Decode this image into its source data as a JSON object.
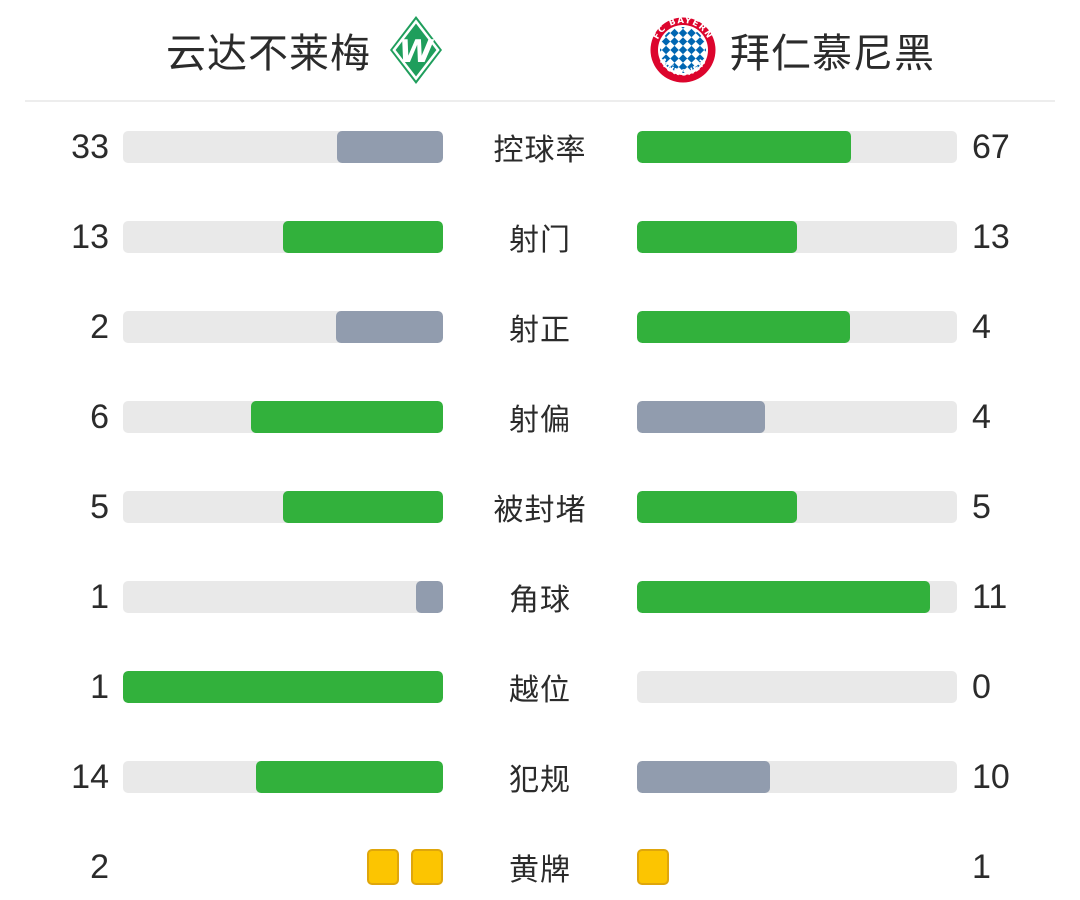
{
  "header": {
    "home_team": {
      "name": "云达不莱梅",
      "logo_letter": "W"
    },
    "away_team": {
      "name": "拜仁慕尼黑",
      "logo_text_top": "FC BAYERN",
      "logo_text_bottom": "MÜNCHEN"
    }
  },
  "colors": {
    "win_bar": "#32b13c",
    "lose_bar": "#919cae",
    "bar_track": "#e9e9e9",
    "yellow_card_fill": "#fcc501",
    "yellow_card_border": "#dfa60b",
    "text": "#2b2b2b",
    "werder_green": "#1f9e5c",
    "bayern_red": "#dc052d",
    "bayern_blue": "#0066b2"
  },
  "stats": [
    {
      "type": "bar",
      "label": "控球率",
      "home": {
        "value": "33",
        "pct": 33,
        "color": "lose"
      },
      "away": {
        "value": "67",
        "pct": 67,
        "color": "win"
      }
    },
    {
      "type": "bar",
      "label": "射门",
      "home": {
        "value": "13",
        "pct": 50,
        "color": "win"
      },
      "away": {
        "value": "13",
        "pct": 50,
        "color": "win"
      }
    },
    {
      "type": "bar",
      "label": "射正",
      "home": {
        "value": "2",
        "pct": 33.3,
        "color": "lose"
      },
      "away": {
        "value": "4",
        "pct": 66.7,
        "color": "win"
      }
    },
    {
      "type": "bar",
      "label": "射偏",
      "home": {
        "value": "6",
        "pct": 60,
        "color": "win"
      },
      "away": {
        "value": "4",
        "pct": 40,
        "color": "lose"
      }
    },
    {
      "type": "bar",
      "label": "被封堵",
      "home": {
        "value": "5",
        "pct": 50,
        "color": "win"
      },
      "away": {
        "value": "5",
        "pct": 50,
        "color": "win"
      }
    },
    {
      "type": "bar",
      "label": "角球",
      "home": {
        "value": "1",
        "pct": 8.3,
        "color": "lose"
      },
      "away": {
        "value": "11",
        "pct": 91.7,
        "color": "win"
      }
    },
    {
      "type": "bar",
      "label": "越位",
      "home": {
        "value": "1",
        "pct": 100,
        "color": "win"
      },
      "away": {
        "value": "0",
        "pct": 0,
        "color": "win"
      }
    },
    {
      "type": "bar",
      "label": "犯规",
      "home": {
        "value": "14",
        "pct": 58.3,
        "color": "win"
      },
      "away": {
        "value": "10",
        "pct": 41.7,
        "color": "lose"
      }
    },
    {
      "type": "cards",
      "label": "黄牌",
      "home": {
        "value": "2",
        "cards": 2
      },
      "away": {
        "value": "1",
        "cards": 1
      }
    }
  ],
  "chart_data": {
    "type": "bar",
    "title": "",
    "categories": [
      "控球率",
      "射门",
      "射正",
      "射偏",
      "被封堵",
      "角球",
      "越位",
      "犯规",
      "黄牌"
    ],
    "series": [
      {
        "name": "云达不莱梅",
        "values": [
          33,
          13,
          2,
          6,
          5,
          1,
          1,
          14,
          2
        ]
      },
      {
        "name": "拜仁慕尼黑",
        "values": [
          67,
          13,
          4,
          4,
          5,
          11,
          0,
          10,
          1
        ]
      }
    ],
    "layout": "horizontal-mirrored-from-center",
    "bar_scale": "value / (home + away) per row",
    "bar_colors": {
      "higher_or_tie": "#32b13c",
      "lower": "#919cae",
      "track": "#e9e9e9"
    },
    "notes": "黄牌 row rendered as yellow-card icons instead of bars"
  }
}
